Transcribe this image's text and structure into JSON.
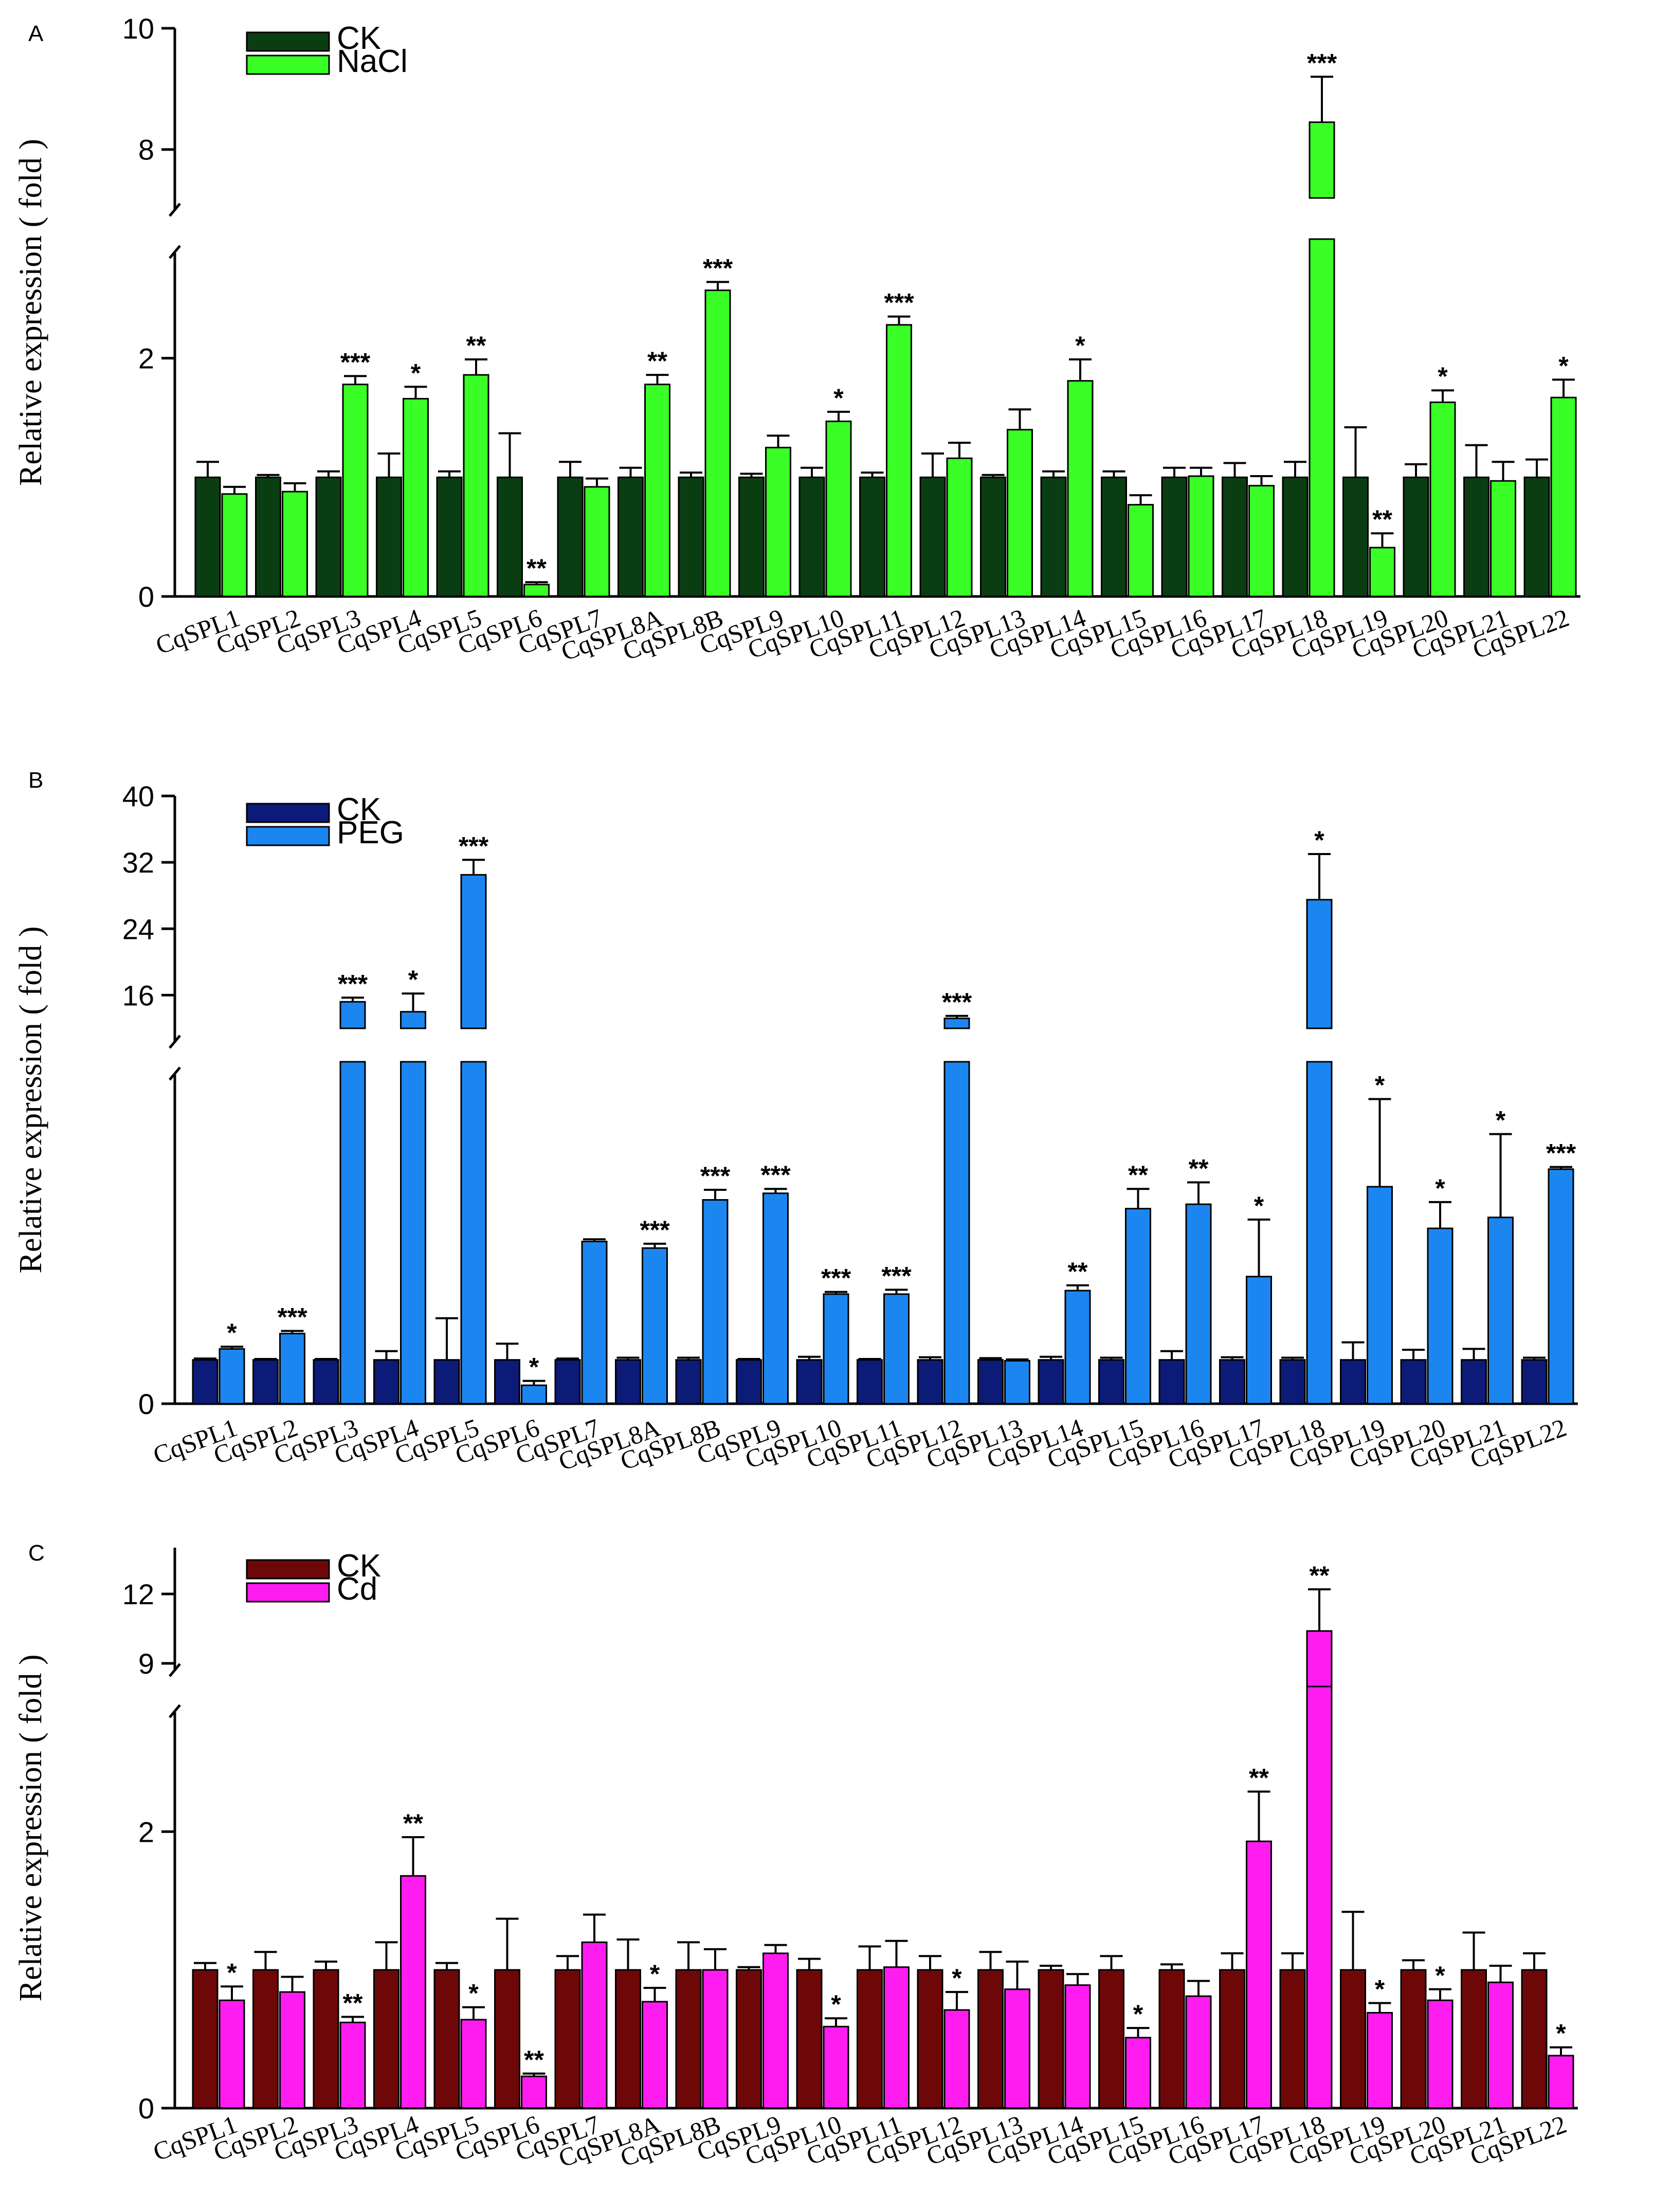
{
  "chart_data": [
    {
      "type": "bar",
      "panel": "A",
      "ylabel": "Relative expression ( fold )",
      "categories": [
        "CqSPL1",
        "CqSPL2",
        "CqSPL3",
        "CqSPL4",
        "CqSPL5",
        "CqSPL6",
        "CqSPL7",
        "CqSPL8A",
        "CqSPL8B",
        "CqSPL9",
        "CqSPL10",
        "CqSPL11",
        "CqSPL12",
        "CqSPL13",
        "CqSPL14",
        "CqSPL15",
        "CqSPL16",
        "CqSPL17",
        "CqSPL18",
        "CqSPL19",
        "CqSPL20",
        "CqSPL21",
        "CqSPL22"
      ],
      "series": [
        {
          "name": "CK",
          "color": "#0b3d12",
          "values": [
            1,
            1,
            1,
            1,
            1,
            1,
            1,
            1,
            1,
            1,
            1,
            1,
            1,
            1,
            1,
            1,
            1,
            1,
            1,
            1,
            1,
            1,
            1
          ],
          "errors": [
            0.13,
            0.02,
            0.05,
            0.2,
            0.05,
            0.37,
            0.13,
            0.08,
            0.04,
            0.03,
            0.08,
            0.04,
            0.2,
            0.02,
            0.05,
            0.05,
            0.08,
            0.12,
            0.13,
            0.42,
            0.11,
            0.27,
            0.15
          ]
        },
        {
          "name": "NaCl",
          "color": "#39ff26",
          "values": [
            0.86,
            0.88,
            1.78,
            1.66,
            1.86,
            0.1,
            0.92,
            1.78,
            2.57,
            1.25,
            1.47,
            2.28,
            1.16,
            1.4,
            1.81,
            0.77,
            1.01,
            0.93,
            8.45,
            0.41,
            1.63,
            0.97,
            1.67
          ],
          "errors": [
            0.06,
            0.07,
            0.07,
            0.1,
            0.13,
            0.02,
            0.07,
            0.08,
            0.07,
            0.1,
            0.08,
            0.07,
            0.13,
            0.17,
            0.18,
            0.08,
            0.07,
            0.08,
            0.75,
            0.12,
            0.1,
            0.16,
            0.15
          ]
        }
      ],
      "significance": [
        "",
        "",
        "***",
        "*",
        "**",
        "**",
        "",
        "**",
        "***",
        "",
        "*",
        "***",
        "",
        "",
        "*",
        "",
        "",
        "",
        "***",
        "**",
        "*",
        "",
        "*"
      ],
      "yaxis": {
        "lower": {
          "range": [
            0,
            3
          ],
          "ticks": [
            "0",
            "2"
          ]
        },
        "upper": {
          "range": [
            7.2,
            10
          ],
          "ticks": [
            "8",
            "10"
          ]
        }
      }
    },
    {
      "type": "bar",
      "panel": "B",
      "ylabel": "Relative expression ( fold )",
      "categories": [
        "CqSPL1",
        "CqSPL2",
        "CqSPL3",
        "CqSPL4",
        "CqSPL5",
        "CqSPL6",
        "CqSPL7",
        "CqSPL8A",
        "CqSPL8B",
        "CqSPL9",
        "CqSPL10",
        "CqSPL11",
        "CqSPL12",
        "CqSPL13",
        "CqSPL14",
        "CqSPL15",
        "CqSPL16",
        "CqSPL17",
        "CqSPL18",
        "CqSPL19",
        "CqSPL20",
        "CqSPL21",
        "CqSPL22"
      ],
      "series": [
        {
          "name": "CK",
          "color": "#0c1a78",
          "values": [
            1,
            1,
            1,
            1,
            1,
            1,
            1,
            1,
            1,
            1,
            1,
            1,
            1,
            1,
            1,
            1,
            1,
            1,
            1,
            1,
            1,
            1,
            1
          ],
          "errors": [
            0.03,
            0.02,
            0.02,
            0.2,
            0.95,
            0.37,
            0.03,
            0.05,
            0.05,
            0.02,
            0.07,
            0.02,
            0.06,
            0.04,
            0.07,
            0.05,
            0.2,
            0.06,
            0.05,
            0.4,
            0.23,
            0.25,
            0.05
          ]
        },
        {
          "name": "PEG",
          "color": "#1c86f0",
          "values": [
            1.25,
            1.6,
            15.2,
            14,
            30.5,
            0.42,
            3.7,
            3.55,
            4.65,
            4.8,
            2.5,
            2.5,
            13.2,
            0.98,
            2.58,
            4.45,
            4.55,
            2.9,
            27.5,
            4.95,
            4.0,
            4.25,
            5.35
          ],
          "errors": [
            0.05,
            0.06,
            0.5,
            2.2,
            1.8,
            0.1,
            0.05,
            0.1,
            0.23,
            0.1,
            0.05,
            0.1,
            0.3,
            0.03,
            0.12,
            0.45,
            0.5,
            1.3,
            5.5,
            2.0,
            0.6,
            1.9,
            0.05
          ]
        }
      ],
      "significance": [
        "*",
        "***",
        "***",
        "*",
        "***",
        "*",
        "",
        "***",
        "***",
        "***",
        "***",
        "***",
        "***",
        "",
        "**",
        "**",
        "**",
        "*",
        "*",
        "*",
        "*",
        "*",
        "***"
      ],
      "yaxis": {
        "lower": {
          "range": [
            0,
            7.8
          ],
          "ticks": [
            "0"
          ]
        },
        "upper": {
          "range": [
            12,
            40
          ],
          "ticks": [
            "16",
            "24",
            "32",
            "40"
          ]
        }
      }
    },
    {
      "type": "bar",
      "panel": "C",
      "ylabel": "Relative expression ( fold )",
      "categories": [
        "CqSPL1",
        "CqSPL2",
        "CqSPL3",
        "CqSPL4",
        "CqSPL5",
        "CqSPL6",
        "CqSPL7",
        "CqSPL8A",
        "CqSPL8B",
        "CqSPL9",
        "CqSPL10",
        "CqSPL11",
        "CqSPL12",
        "CqSPL13",
        "CqSPL14",
        "CqSPL15",
        "CqSPL16",
        "CqSPL17",
        "CqSPL18",
        "CqSPL19",
        "CqSPL20",
        "CqSPL21",
        "CqSPL22"
      ],
      "series": [
        {
          "name": "CK",
          "color": "#6e0808",
          "values": [
            1,
            1,
            1,
            1,
            1,
            1,
            1,
            1,
            1,
            1,
            1,
            1,
            1,
            1,
            1,
            1,
            1,
            1,
            1,
            1,
            1,
            1,
            1
          ],
          "errors": [
            0.05,
            0.13,
            0.06,
            0.2,
            0.05,
            0.37,
            0.1,
            0.22,
            0.2,
            0.02,
            0.08,
            0.17,
            0.1,
            0.13,
            0.03,
            0.1,
            0.04,
            0.12,
            0.12,
            0.42,
            0.07,
            0.27,
            0.12
          ]
        },
        {
          "name": "Cd",
          "color": "#ff1cf0",
          "values": [
            0.78,
            0.84,
            0.62,
            1.68,
            0.64,
            0.23,
            1.2,
            0.77,
            1.0,
            1.12,
            0.59,
            1.02,
            0.71,
            0.86,
            0.89,
            0.51,
            0.81,
            1.93,
            10.4,
            0.69,
            0.78,
            0.91,
            0.38
          ],
          "errors": [
            0.1,
            0.11,
            0.04,
            0.28,
            0.09,
            0.02,
            0.2,
            0.1,
            0.15,
            0.06,
            0.06,
            0.19,
            0.13,
            0.2,
            0.08,
            0.07,
            0.11,
            0.36,
            1.8,
            0.07,
            0.08,
            0.12,
            0.06
          ]
        }
      ],
      "significance": [
        "*",
        "",
        "**",
        "**",
        "*",
        "**",
        "",
        "*",
        "",
        "",
        "*",
        "",
        "*",
        "",
        "",
        "*",
        "",
        "**",
        "**",
        "*",
        "*",
        "",
        "*"
      ],
      "yaxis": {
        "lower": {
          "range": [
            0,
            3.05
          ],
          "ticks": [
            "0",
            "2"
          ]
        },
        "upper": {
          "range": [
            8,
            14
          ],
          "ticks": [
            "9",
            "12"
          ]
        }
      }
    }
  ]
}
